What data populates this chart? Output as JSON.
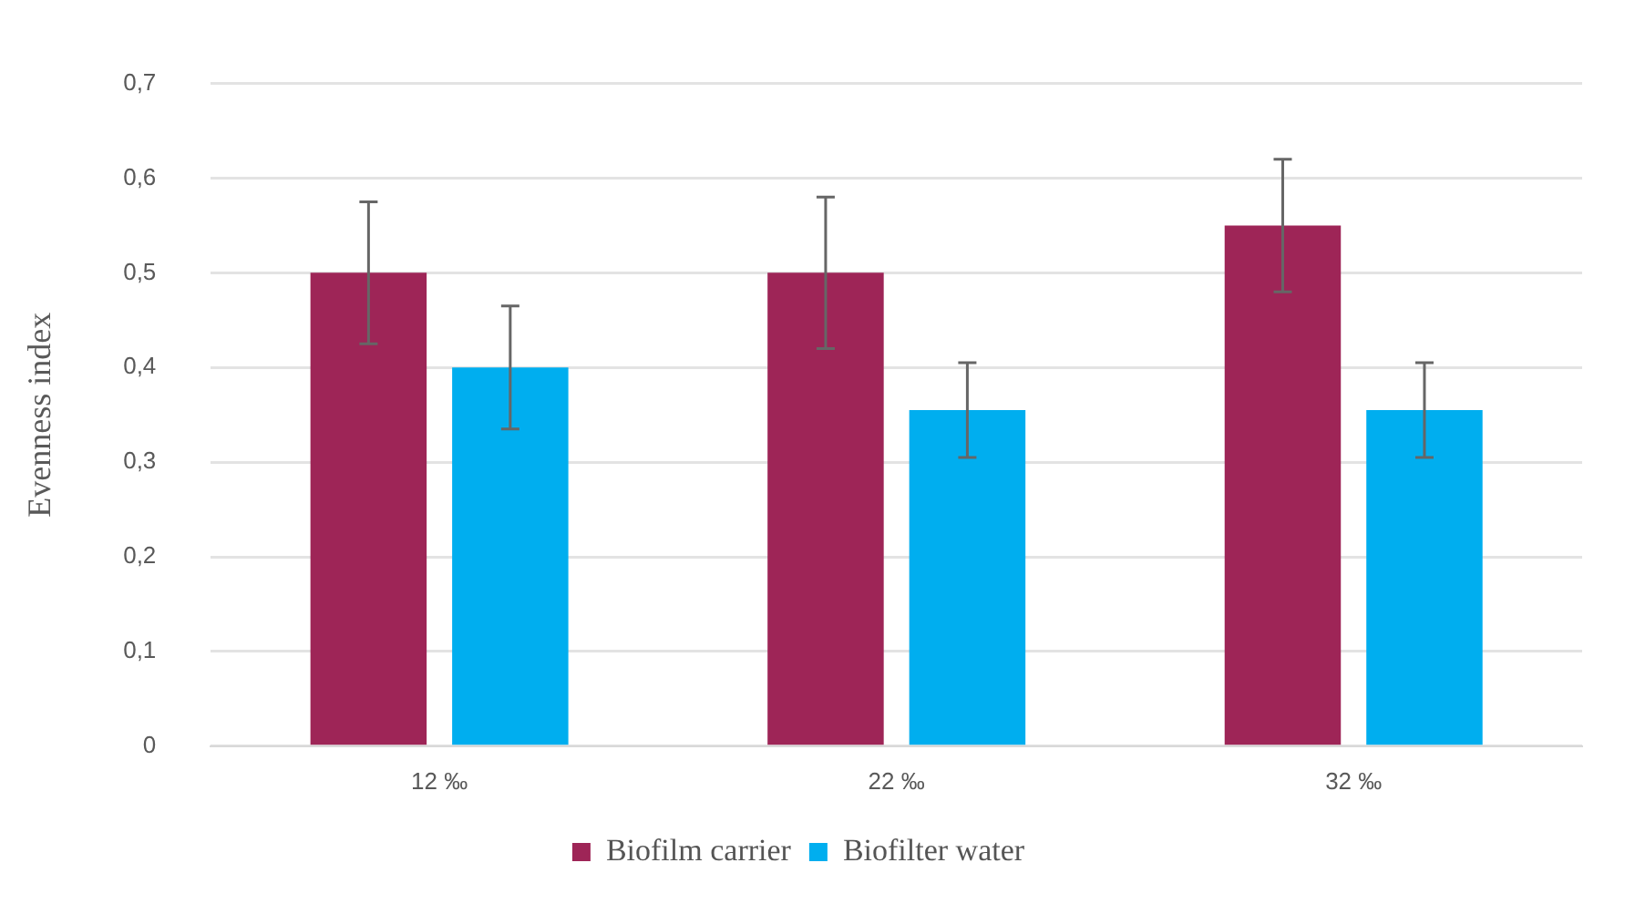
{
  "chart_data": {
    "type": "bar",
    "ylabel": "Evenness index",
    "categories": [
      "12 ‰",
      "22 ‰",
      "32 ‰"
    ],
    "series": [
      {
        "name": "Biofilm carrier",
        "color": "#9e2557",
        "values": [
          0.5,
          0.5,
          0.55
        ],
        "errors": [
          0.075,
          0.08,
          0.07
        ]
      },
      {
        "name": "Biofilter water",
        "color": "#00aeef",
        "values": [
          0.4,
          0.355,
          0.355
        ],
        "errors": [
          0.065,
          0.05,
          0.05
        ]
      }
    ],
    "ylim": [
      0,
      0.7
    ],
    "yticks": [
      0,
      {
        "value": 0.1,
        "label": "0,1"
      },
      {
        "value": 0.2,
        "label": "0,2"
      },
      {
        "value": 0.3,
        "label": "0,3"
      },
      {
        "value": 0.4,
        "label": "0,4"
      },
      {
        "value": 0.5,
        "label": "0,5"
      },
      {
        "value": 0.6,
        "label": "0,6"
      },
      {
        "value": 0.7,
        "label": "0,7"
      }
    ],
    "grid": "y",
    "legend": "bottom"
  }
}
